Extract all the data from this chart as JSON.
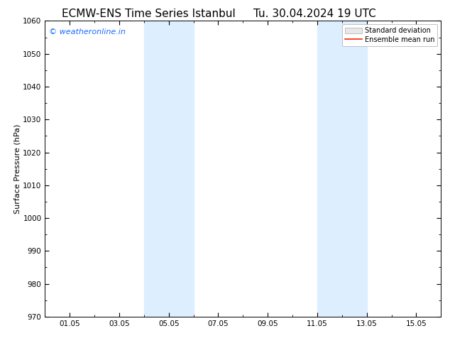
{
  "title_left": "ECMW-ENS Time Series Istanbul",
  "title_right": "Tu. 30.04.2024 19 UTC",
  "ylabel": "Surface Pressure (hPa)",
  "ylim": [
    970,
    1060
  ],
  "yticks": [
    970,
    980,
    990,
    1000,
    1010,
    1020,
    1030,
    1040,
    1050,
    1060
  ],
  "xtick_labels": [
    "01.05",
    "03.05",
    "05.05",
    "07.05",
    "09.05",
    "11.05",
    "13.05",
    "15.05"
  ],
  "xtick_positions": [
    1,
    3,
    5,
    7,
    9,
    11,
    13,
    15
  ],
  "xlim": [
    0,
    16
  ],
  "shaded_regions": [
    {
      "x_start": 4.0,
      "x_end": 6.0
    },
    {
      "x_start": 11.0,
      "x_end": 13.0
    }
  ],
  "shaded_color": "#ddeeff",
  "background_color": "#ffffff",
  "watermark_text": "© weatheronline.in",
  "watermark_color": "#1a6aff",
  "watermark_fontsize": 8,
  "legend_std_label": "Standard deviation",
  "legend_mean_label": "Ensemble mean run",
  "legend_std_facecolor": "#e8e8e8",
  "legend_std_edgecolor": "#aaaaaa",
  "legend_mean_color": "#ff2200",
  "title_fontsize": 11,
  "axis_label_fontsize": 8,
  "tick_fontsize": 7.5,
  "tick_color": "#000000",
  "spine_color": "#000000",
  "minor_tick_interval": 0.5
}
